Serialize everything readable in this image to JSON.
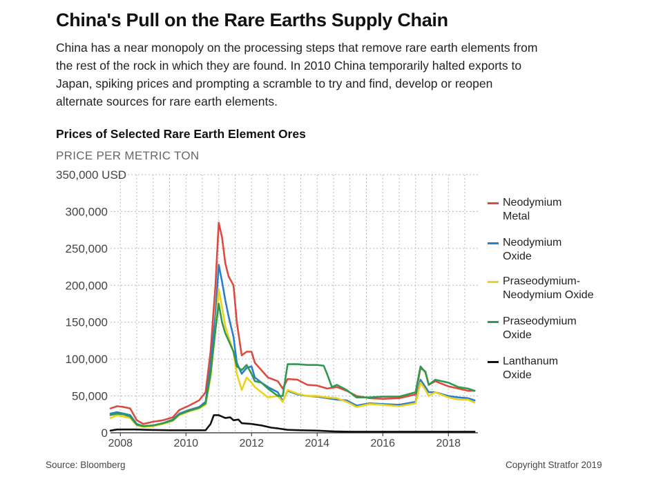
{
  "header": {
    "title": "China's Pull on the Rare Earths Supply Chain",
    "subtitle": "China has a near monopoly on the processing steps that remove rare earth elements from the rest of the rock in which they are found. In 2010 China temporarily halted exports to Japan, spiking prices and prompting a scramble to try and find, develop or reopen alternate sources for rare earth elements."
  },
  "footer": {
    "source": "Source: Bloomberg",
    "copyright": "Copyright Stratfor 2019"
  },
  "chart_data": {
    "type": "line",
    "title": "Prices of Selected Rare Earth Element Ores",
    "ylabel": "PRICE PER METRIC TON",
    "xlabel": "",
    "xlim": [
      2007.7,
      2018.9
    ],
    "ylim": [
      0,
      350000
    ],
    "yticks": [
      0,
      50000,
      100000,
      150000,
      200000,
      250000,
      300000,
      350000
    ],
    "ytick_labels": [
      "0",
      "50,000",
      "100,000",
      "150,000",
      "200,000",
      "250,000",
      "300,000",
      "350,000 USD"
    ],
    "xticks": [
      2008,
      2010,
      2012,
      2014,
      2016,
      2018
    ],
    "xtick_labels": [
      "2008",
      "2010",
      "2012",
      "2014",
      "2016",
      "2018"
    ],
    "gridlines": [
      2008,
      2008.5,
      2009,
      2009.5,
      2010,
      2010.5,
      2011,
      2011.5,
      2012,
      2012.5,
      2013,
      2013.5,
      2014,
      2014.5,
      2015,
      2015.5,
      2016,
      2016.5,
      2017,
      2017.5,
      2018,
      2018.5
    ],
    "legend_position": "right",
    "series": [
      {
        "name": "Neodymium Metal",
        "label_lines": [
          "Neodymium",
          "Metal"
        ],
        "color": "#dd4a3f",
        "points": [
          [
            2007.7,
            33000
          ],
          [
            2007.9,
            36000
          ],
          [
            2008.1,
            35000
          ],
          [
            2008.3,
            33000
          ],
          [
            2008.5,
            17000
          ],
          [
            2008.7,
            12000
          ],
          [
            2009.0,
            15000
          ],
          [
            2009.3,
            17000
          ],
          [
            2009.6,
            21000
          ],
          [
            2009.8,
            31000
          ],
          [
            2010.1,
            37000
          ],
          [
            2010.4,
            44000
          ],
          [
            2010.6,
            55000
          ],
          [
            2010.75,
            110000
          ],
          [
            2010.9,
            200000
          ],
          [
            2011.0,
            285000
          ],
          [
            2011.1,
            265000
          ],
          [
            2011.2,
            230000
          ],
          [
            2011.3,
            212000
          ],
          [
            2011.45,
            200000
          ],
          [
            2011.55,
            150000
          ],
          [
            2011.7,
            105000
          ],
          [
            2011.85,
            110000
          ],
          [
            2012.0,
            110000
          ],
          [
            2012.1,
            95000
          ],
          [
            2012.3,
            85000
          ],
          [
            2012.5,
            75000
          ],
          [
            2012.8,
            70000
          ],
          [
            2012.95,
            60000
          ],
          [
            2013.1,
            73000
          ],
          [
            2013.4,
            72000
          ],
          [
            2013.7,
            65000
          ],
          [
            2014.0,
            64000
          ],
          [
            2014.3,
            60000
          ],
          [
            2014.6,
            62000
          ],
          [
            2014.9,
            57000
          ],
          [
            2015.2,
            50000
          ],
          [
            2015.6,
            47000
          ],
          [
            2016.0,
            46000
          ],
          [
            2016.5,
            47000
          ],
          [
            2017.0,
            52000
          ],
          [
            2017.15,
            88000
          ],
          [
            2017.3,
            83000
          ],
          [
            2017.4,
            65000
          ],
          [
            2017.6,
            70000
          ],
          [
            2018.0,
            63000
          ],
          [
            2018.3,
            60000
          ],
          [
            2018.6,
            57000
          ],
          [
            2018.8,
            57000
          ]
        ]
      },
      {
        "name": "Neodymium Oxide",
        "label_lines": [
          "Neodymium",
          "Oxide"
        ],
        "color": "#2a7fcc",
        "points": [
          [
            2007.7,
            26000
          ],
          [
            2007.9,
            28000
          ],
          [
            2008.1,
            26000
          ],
          [
            2008.3,
            24000
          ],
          [
            2008.5,
            12000
          ],
          [
            2008.7,
            9000
          ],
          [
            2009.0,
            10000
          ],
          [
            2009.3,
            13000
          ],
          [
            2009.6,
            18000
          ],
          [
            2009.8,
            26000
          ],
          [
            2010.1,
            31000
          ],
          [
            2010.4,
            35000
          ],
          [
            2010.6,
            42000
          ],
          [
            2010.75,
            90000
          ],
          [
            2010.9,
            160000
          ],
          [
            2011.0,
            228000
          ],
          [
            2011.1,
            205000
          ],
          [
            2011.2,
            180000
          ],
          [
            2011.3,
            158000
          ],
          [
            2011.45,
            130000
          ],
          [
            2011.55,
            95000
          ],
          [
            2011.7,
            80000
          ],
          [
            2011.85,
            88000
          ],
          [
            2012.0,
            90000
          ],
          [
            2012.1,
            75000
          ],
          [
            2012.3,
            68000
          ],
          [
            2012.5,
            62000
          ],
          [
            2012.8,
            55000
          ],
          [
            2012.95,
            43000
          ],
          [
            2013.1,
            57000
          ],
          [
            2013.4,
            52000
          ],
          [
            2013.7,
            50000
          ],
          [
            2014.0,
            49000
          ],
          [
            2014.3,
            47000
          ],
          [
            2014.6,
            45000
          ],
          [
            2014.9,
            44000
          ],
          [
            2015.2,
            37000
          ],
          [
            2015.6,
            40000
          ],
          [
            2016.0,
            39000
          ],
          [
            2016.5,
            38000
          ],
          [
            2017.0,
            42000
          ],
          [
            2017.15,
            72000
          ],
          [
            2017.3,
            62000
          ],
          [
            2017.4,
            55000
          ],
          [
            2017.6,
            55000
          ],
          [
            2018.0,
            50000
          ],
          [
            2018.3,
            48000
          ],
          [
            2018.6,
            47000
          ],
          [
            2018.8,
            44000
          ]
        ]
      },
      {
        "name": "Praseodymium-Neodymium Oxide",
        "label_lines": [
          "Praseodymium-",
          "Neodymium Oxide"
        ],
        "color": "#ecd21b",
        "points": [
          [
            2007.7,
            20000
          ],
          [
            2007.9,
            24000
          ],
          [
            2008.1,
            22000
          ],
          [
            2008.3,
            20000
          ],
          [
            2008.5,
            10000
          ],
          [
            2008.7,
            8000
          ],
          [
            2009.0,
            9000
          ],
          [
            2009.3,
            12000
          ],
          [
            2009.6,
            16000
          ],
          [
            2009.8,
            24000
          ],
          [
            2010.1,
            29000
          ],
          [
            2010.4,
            33000
          ],
          [
            2010.6,
            38000
          ],
          [
            2010.75,
            75000
          ],
          [
            2010.9,
            140000
          ],
          [
            2011.0,
            195000
          ],
          [
            2011.1,
            170000
          ],
          [
            2011.2,
            145000
          ],
          [
            2011.3,
            130000
          ],
          [
            2011.45,
            110000
          ],
          [
            2011.55,
            80000
          ],
          [
            2011.7,
            58000
          ],
          [
            2011.85,
            75000
          ],
          [
            2012.0,
            68000
          ],
          [
            2012.1,
            62000
          ],
          [
            2012.3,
            55000
          ],
          [
            2012.5,
            48000
          ],
          [
            2012.8,
            50000
          ],
          [
            2012.95,
            42000
          ],
          [
            2013.1,
            58000
          ],
          [
            2013.4,
            53000
          ],
          [
            2013.7,
            50000
          ],
          [
            2014.0,
            50000
          ],
          [
            2014.3,
            48000
          ],
          [
            2014.6,
            47000
          ],
          [
            2014.9,
            42000
          ],
          [
            2015.2,
            35000
          ],
          [
            2015.6,
            39000
          ],
          [
            2016.0,
            38000
          ],
          [
            2016.5,
            36000
          ],
          [
            2017.0,
            40000
          ],
          [
            2017.15,
            68000
          ],
          [
            2017.3,
            58000
          ],
          [
            2017.4,
            50000
          ],
          [
            2017.6,
            55000
          ],
          [
            2018.0,
            48000
          ],
          [
            2018.3,
            45000
          ],
          [
            2018.6,
            45000
          ],
          [
            2018.8,
            41000
          ]
        ]
      },
      {
        "name": "Praseodymium Oxide",
        "label_lines": [
          "Praseodymium",
          "Oxide"
        ],
        "color": "#2f9a4e",
        "points": [
          [
            2007.7,
            24000
          ],
          [
            2007.9,
            26000
          ],
          [
            2008.1,
            25000
          ],
          [
            2008.3,
            22000
          ],
          [
            2008.5,
            11000
          ],
          [
            2008.7,
            9000
          ],
          [
            2009.0,
            10000
          ],
          [
            2009.3,
            13000
          ],
          [
            2009.6,
            17000
          ],
          [
            2009.8,
            25000
          ],
          [
            2010.1,
            30000
          ],
          [
            2010.4,
            34000
          ],
          [
            2010.6,
            40000
          ],
          [
            2010.75,
            80000
          ],
          [
            2010.9,
            140000
          ],
          [
            2011.0,
            175000
          ],
          [
            2011.1,
            150000
          ],
          [
            2011.2,
            135000
          ],
          [
            2011.3,
            125000
          ],
          [
            2011.45,
            110000
          ],
          [
            2011.55,
            90000
          ],
          [
            2011.7,
            85000
          ],
          [
            2011.85,
            92000
          ],
          [
            2012.0,
            80000
          ],
          [
            2012.1,
            70000
          ],
          [
            2012.3,
            68000
          ],
          [
            2012.5,
            60000
          ],
          [
            2012.8,
            50000
          ],
          [
            2012.95,
            50000
          ],
          [
            2013.1,
            93000
          ],
          [
            2013.4,
            93000
          ],
          [
            2013.7,
            92000
          ],
          [
            2014.0,
            92000
          ],
          [
            2014.2,
            91000
          ],
          [
            2014.3,
            80000
          ],
          [
            2014.45,
            62000
          ],
          [
            2014.6,
            65000
          ],
          [
            2014.9,
            58000
          ],
          [
            2015.2,
            48000
          ],
          [
            2015.6,
            48000
          ],
          [
            2016.0,
            49000
          ],
          [
            2016.5,
            49000
          ],
          [
            2017.0,
            55000
          ],
          [
            2017.15,
            90000
          ],
          [
            2017.3,
            82000
          ],
          [
            2017.4,
            65000
          ],
          [
            2017.6,
            72000
          ],
          [
            2018.0,
            68000
          ],
          [
            2018.3,
            62000
          ],
          [
            2018.6,
            60000
          ],
          [
            2018.8,
            57000
          ]
        ]
      },
      {
        "name": "Lanthanum Oxide",
        "label_lines": [
          "Lanthanum",
          "Oxide"
        ],
        "color": "#111111",
        "points": [
          [
            2007.7,
            3000
          ],
          [
            2007.9,
            4500
          ],
          [
            2008.1,
            4500
          ],
          [
            2008.5,
            4500
          ],
          [
            2008.8,
            4000
          ],
          [
            2009.5,
            3500
          ],
          [
            2010.2,
            3500
          ],
          [
            2010.6,
            3500
          ],
          [
            2010.75,
            12000
          ],
          [
            2010.85,
            24000
          ],
          [
            2011.0,
            24000
          ],
          [
            2011.2,
            20000
          ],
          [
            2011.35,
            21000
          ],
          [
            2011.45,
            17000
          ],
          [
            2011.6,
            18000
          ],
          [
            2011.7,
            13000
          ],
          [
            2012.0,
            12000
          ],
          [
            2012.3,
            10000
          ],
          [
            2012.6,
            7000
          ],
          [
            2012.8,
            6000
          ],
          [
            2013.1,
            4000
          ],
          [
            2013.5,
            3500
          ],
          [
            2014.0,
            3000
          ],
          [
            2014.5,
            2000
          ],
          [
            2015.0,
            1500
          ],
          [
            2016.0,
            1500
          ],
          [
            2017.0,
            1500
          ],
          [
            2017.5,
            1500
          ],
          [
            2018.0,
            1500
          ],
          [
            2018.5,
            1500
          ],
          [
            2018.8,
            1500
          ]
        ]
      }
    ]
  }
}
